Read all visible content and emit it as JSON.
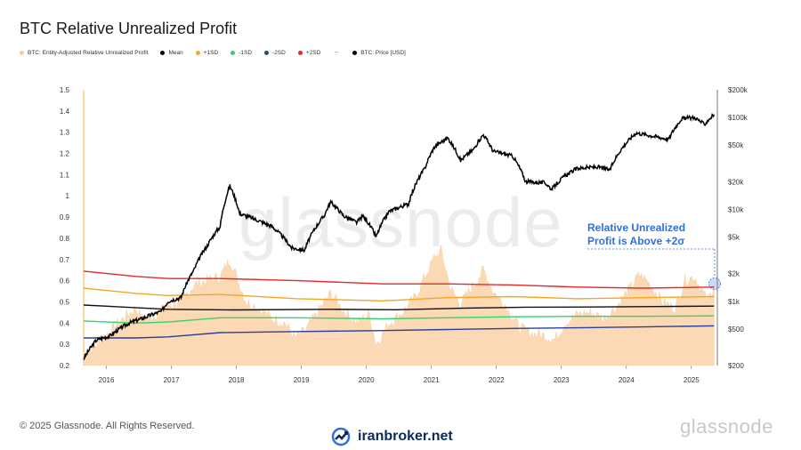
{
  "title": "BTC Relative Unrealized Profit",
  "legend": [
    {
      "label": "BTC: Entity-Adjusted Relative Unrealized Profit",
      "color": "#f9c99a"
    },
    {
      "label": "Mean",
      "color": "#000000"
    },
    {
      "label": "+1SD",
      "color": "#f5a623"
    },
    {
      "label": "-1SD",
      "color": "#32d46b"
    },
    {
      "label": "-2SD",
      "color": "#2b3f9e"
    },
    {
      "label": "+2SD",
      "color": "#e5282a"
    },
    {
      "label": "BTC: Price [USD]",
      "color": "#000000"
    }
  ],
  "legend_sep": "--",
  "annotation": {
    "line1": "Relative Unrealized",
    "line2": "Profit is Above +2σ",
    "color": "#2f6fe0"
  },
  "watermark": "glassnode",
  "footer": "© 2025 Glassnode. All Rights Reserved.",
  "brand": "iranbroker.net",
  "logo": "glassnode",
  "chart_data": {
    "type": "area",
    "x_ticks": [
      "2016",
      "2017",
      "2018",
      "2019",
      "2020",
      "2021",
      "2022",
      "2023",
      "2024",
      "2025"
    ],
    "y_left": {
      "ticks": [
        "0.2",
        "0.3",
        "0.4",
        "0.5",
        "0.6",
        "0.7",
        "0.8",
        "0.9",
        "1",
        "1.1",
        "1.2",
        "1.3",
        "1.4",
        "1.5"
      ],
      "range": [
        0.2,
        1.5
      ]
    },
    "y_right": {
      "ticks": [
        "$200",
        "$500",
        "$1k",
        "$2k",
        "$5k",
        "$10k",
        "$20k",
        "$50k",
        "$100k",
        "$200k"
      ],
      "scale": "log",
      "range": [
        200,
        200000
      ]
    },
    "rup": [
      [
        2015.7,
        0.25
      ],
      [
        2015.9,
        0.3
      ],
      [
        2016.1,
        0.36
      ],
      [
        2016.3,
        0.42
      ],
      [
        2016.5,
        0.47
      ],
      [
        2016.6,
        0.42
      ],
      [
        2016.8,
        0.44
      ],
      [
        2017.0,
        0.48
      ],
      [
        2017.2,
        0.5
      ],
      [
        2017.4,
        0.58
      ],
      [
        2017.6,
        0.6
      ],
      [
        2017.8,
        0.62
      ],
      [
        2017.95,
        0.7
      ],
      [
        2018.05,
        0.62
      ],
      [
        2018.2,
        0.5
      ],
      [
        2018.4,
        0.47
      ],
      [
        2018.6,
        0.42
      ],
      [
        2018.8,
        0.4
      ],
      [
        2018.95,
        0.33
      ],
      [
        2019.1,
        0.36
      ],
      [
        2019.3,
        0.45
      ],
      [
        2019.5,
        0.54
      ],
      [
        2019.7,
        0.46
      ],
      [
        2019.9,
        0.4
      ],
      [
        2020.1,
        0.44
      ],
      [
        2020.2,
        0.3
      ],
      [
        2020.4,
        0.4
      ],
      [
        2020.6,
        0.45
      ],
      [
        2020.8,
        0.52
      ],
      [
        2020.95,
        0.62
      ],
      [
        2021.1,
        0.71
      ],
      [
        2021.2,
        0.74
      ],
      [
        2021.35,
        0.56
      ],
      [
        2021.5,
        0.49
      ],
      [
        2021.7,
        0.58
      ],
      [
        2021.85,
        0.65
      ],
      [
        2022.0,
        0.55
      ],
      [
        2022.2,
        0.48
      ],
      [
        2022.4,
        0.38
      ],
      [
        2022.6,
        0.35
      ],
      [
        2022.8,
        0.34
      ],
      [
        2022.95,
        0.32
      ],
      [
        2023.1,
        0.4
      ],
      [
        2023.3,
        0.44
      ],
      [
        2023.5,
        0.45
      ],
      [
        2023.7,
        0.42
      ],
      [
        2023.9,
        0.48
      ],
      [
        2024.1,
        0.56
      ],
      [
        2024.25,
        0.63
      ],
      [
        2024.4,
        0.59
      ],
      [
        2024.6,
        0.5
      ],
      [
        2024.8,
        0.47
      ],
      [
        2024.95,
        0.6
      ],
      [
        2025.1,
        0.62
      ],
      [
        2025.2,
        0.56
      ],
      [
        2025.3,
        0.5
      ],
      [
        2025.4,
        0.58
      ]
    ],
    "mean": [
      [
        2015.7,
        0.485
      ],
      [
        2017.0,
        0.465
      ],
      [
        2018.0,
        0.462
      ],
      [
        2019.5,
        0.465
      ],
      [
        2020.5,
        0.463
      ],
      [
        2021.5,
        0.47
      ],
      [
        2022.5,
        0.475
      ],
      [
        2023.5,
        0.476
      ],
      [
        2024.5,
        0.478
      ],
      [
        2025.4,
        0.48
      ]
    ],
    "plus1sd": [
      [
        2015.7,
        0.565
      ],
      [
        2016.5,
        0.54
      ],
      [
        2017.0,
        0.53
      ],
      [
        2017.8,
        0.535
      ],
      [
        2019.0,
        0.515
      ],
      [
        2020.3,
        0.505
      ],
      [
        2021.3,
        0.52
      ],
      [
        2022.3,
        0.525
      ],
      [
        2023.3,
        0.515
      ],
      [
        2024.3,
        0.52
      ],
      [
        2025.4,
        0.525
      ]
    ],
    "plus2sd": [
      [
        2015.7,
        0.645
      ],
      [
        2016.5,
        0.62
      ],
      [
        2017.0,
        0.61
      ],
      [
        2017.8,
        0.61
      ],
      [
        2019.0,
        0.6
      ],
      [
        2020.3,
        0.585
      ],
      [
        2021.3,
        0.585
      ],
      [
        2022.3,
        0.58
      ],
      [
        2023.3,
        0.57
      ],
      [
        2024.3,
        0.565
      ],
      [
        2025.4,
        0.57
      ]
    ],
    "minus1sd": [
      [
        2015.7,
        0.41
      ],
      [
        2016.5,
        0.4
      ],
      [
        2017.0,
        0.405
      ],
      [
        2017.8,
        0.425
      ],
      [
        2019.0,
        0.425
      ],
      [
        2020.3,
        0.42
      ],
      [
        2021.3,
        0.425
      ],
      [
        2022.3,
        0.43
      ],
      [
        2023.3,
        0.432
      ],
      [
        2024.3,
        0.432
      ],
      [
        2025.4,
        0.434
      ]
    ],
    "minus2sd": [
      [
        2015.7,
        0.33
      ],
      [
        2016.5,
        0.33
      ],
      [
        2017.0,
        0.335
      ],
      [
        2017.8,
        0.355
      ],
      [
        2019.0,
        0.36
      ],
      [
        2020.3,
        0.365
      ],
      [
        2021.3,
        0.37
      ],
      [
        2022.3,
        0.375
      ],
      [
        2023.3,
        0.378
      ],
      [
        2024.3,
        0.382
      ],
      [
        2025.4,
        0.387
      ]
    ],
    "price": [
      [
        2015.7,
        235
      ],
      [
        2015.9,
        380
      ],
      [
        2016.1,
        420
      ],
      [
        2016.4,
        580
      ],
      [
        2016.6,
        650
      ],
      [
        2016.9,
        780
      ],
      [
        2017.0,
        1000
      ],
      [
        2017.2,
        1100
      ],
      [
        2017.4,
        2200
      ],
      [
        2017.6,
        4000
      ],
      [
        2017.8,
        6500
      ],
      [
        2017.95,
        18000
      ],
      [
        2018.1,
        9000
      ],
      [
        2018.3,
        8000
      ],
      [
        2018.6,
        6500
      ],
      [
        2018.9,
        3800
      ],
      [
        2019.1,
        3600
      ],
      [
        2019.4,
        8500
      ],
      [
        2019.5,
        12000
      ],
      [
        2019.7,
        8500
      ],
      [
        2019.9,
        7200
      ],
      [
        2020.0,
        8500
      ],
      [
        2020.2,
        5000
      ],
      [
        2020.4,
        9500
      ],
      [
        2020.7,
        11500
      ],
      [
        2020.95,
        28000
      ],
      [
        2021.1,
        48000
      ],
      [
        2021.3,
        60000
      ],
      [
        2021.5,
        34000
      ],
      [
        2021.7,
        45000
      ],
      [
        2021.85,
        65000
      ],
      [
        2022.0,
        43000
      ],
      [
        2022.3,
        38000
      ],
      [
        2022.5,
        20000
      ],
      [
        2022.8,
        19500
      ],
      [
        2022.9,
        16500
      ],
      [
        2023.1,
        23000
      ],
      [
        2023.3,
        28000
      ],
      [
        2023.6,
        29000
      ],
      [
        2023.8,
        27000
      ],
      [
        2023.95,
        43000
      ],
      [
        2024.2,
        68000
      ],
      [
        2024.5,
        62000
      ],
      [
        2024.7,
        58000
      ],
      [
        2024.9,
        97000
      ],
      [
        2025.1,
        100000
      ],
      [
        2025.25,
        84000
      ],
      [
        2025.4,
        108000
      ]
    ]
  }
}
